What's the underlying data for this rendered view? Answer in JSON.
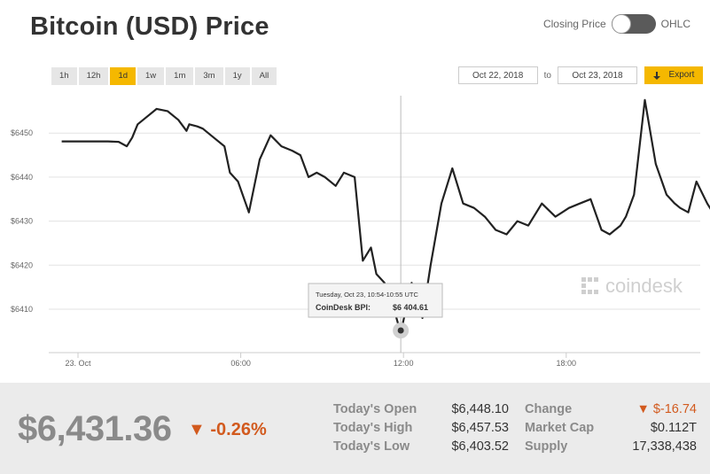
{
  "header": {
    "title": "Bitcoin (USD) Price"
  },
  "toggle": {
    "left_label": "Closing Price",
    "right_label": "OHLC"
  },
  "ranges": [
    "1h",
    "12h",
    "1d",
    "1w",
    "1m",
    "3m",
    "1y",
    "All"
  ],
  "active_range": "1d",
  "date_range": {
    "from": "Oct 22, 2018",
    "to_label": "to",
    "to": "Oct 23, 2018"
  },
  "export": {
    "label": "Export"
  },
  "chart_data": {
    "type": "line",
    "title": "",
    "xlabel": "",
    "ylabel": "",
    "x_ticks": [
      "23. Oct",
      "06:00",
      "12:00",
      "18:00"
    ],
    "y_ticks": [
      "$6410",
      "$6420",
      "$6430",
      "$6440",
      "$6450"
    ],
    "ylim": [
      6400,
      6460
    ],
    "grid": true,
    "watermark": "coindesk",
    "series": [
      {
        "x_hours": [
          -0.6,
          0.4,
          1.1,
          1.5,
          1.8,
          2.0,
          2.2,
          2.5,
          2.9,
          3.3,
          3.7,
          4.0,
          4.1,
          4.4,
          4.6,
          5.0,
          5.4,
          5.6,
          5.9,
          6.3,
          6.7,
          7.1,
          7.5,
          7.9,
          8.2,
          8.5,
          8.8,
          9.1,
          9.5,
          9.8,
          10.2,
          10.5,
          10.8,
          11.0,
          11.3,
          11.6,
          11.9,
          12.3,
          12.7,
          13.0,
          13.4,
          13.8,
          14.2,
          14.6,
          15.0,
          15.4,
          15.8,
          16.2,
          16.6,
          17.1,
          17.6,
          18.1,
          18.5,
          18.9,
          19.3,
          19.6,
          19.8,
          20.0,
          20.2,
          20.5,
          20.9,
          21.3,
          21.7,
          22.0,
          22.2,
          22.5,
          22.8,
          23.2,
          23.6,
          24.0
        ],
        "values": [
          6448.1,
          6448.1,
          6448.1,
          6448.0,
          6447.0,
          6449.0,
          6452.0,
          6453.5,
          6455.5,
          6455.0,
          6453.0,
          6450.5,
          6452.0,
          6451.5,
          6451.0,
          6449.0,
          6447.0,
          6441.0,
          6439.0,
          6432.0,
          6444.0,
          6449.5,
          6447.0,
          6446.0,
          6445.0,
          6440.0,
          6441.0,
          6440.0,
          6438.0,
          6441.0,
          6440.0,
          6421.0,
          6424.0,
          6418.0,
          6416.0,
          6411.0,
          6404.6,
          6416.0,
          6408.0,
          6420.0,
          6434.0,
          6442.0,
          6434.0,
          6433.0,
          6431.0,
          6428.0,
          6427.0,
          6430.0,
          6429.0,
          6434.0,
          6431.0,
          6433.0,
          6434.0,
          6435.0,
          6428.0,
          6427.0,
          6428.0,
          6429.0,
          6431.0,
          6436.0,
          6457.5,
          6443.0,
          6436.0,
          6434.0,
          6433.0,
          6432.0,
          6439.0,
          6434.0,
          6430.0,
          6431.0
        ]
      }
    ]
  },
  "tooltip": {
    "time": "Tuesday, Oct 23, 10:54-10:55 UTC",
    "label": "CoinDesk BPI:",
    "value": "$6 404.61"
  },
  "summary": {
    "price": "$6,431.36",
    "change_arrow": "▼",
    "change_pct": "-0.26%",
    "stats_left": [
      {
        "key": "Today's Open",
        "value": "$6,448.10"
      },
      {
        "key": "Today's High",
        "value": "$6,457.53"
      },
      {
        "key": "Today's Low",
        "value": "$6,403.52"
      }
    ],
    "stats_right": [
      {
        "key": "Change",
        "value": "▼ $-16.74"
      },
      {
        "key": "Market Cap",
        "value": "$0.112T"
      },
      {
        "key": "Supply",
        "value": "17,338,438"
      }
    ]
  },
  "colors": {
    "accent": "#f5b800",
    "negative": "#d25a1e",
    "line": "#222222",
    "panel": "#ebebeb"
  }
}
